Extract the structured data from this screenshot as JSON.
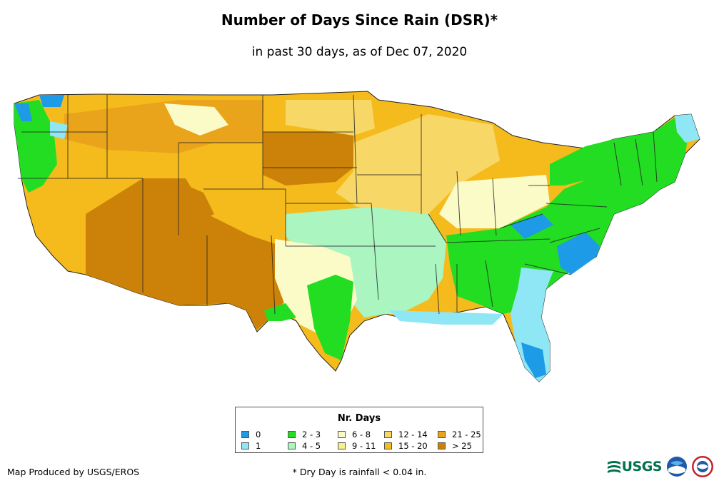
{
  "title": "Number of Days Since Rain (DSR)*",
  "subtitle": "in past 30 days, as of Dec 07, 2020",
  "legend": {
    "title": "Nr. Days",
    "items": [
      {
        "label": "0",
        "color": "#1e9be6"
      },
      {
        "label": "1",
        "color": "#8fe6f5"
      },
      {
        "label": "2 - 3",
        "color": "#22dd22"
      },
      {
        "label": "4 - 5",
        "color": "#aaf5c0"
      },
      {
        "label": "6 - 8",
        "color": "#fbfbc8"
      },
      {
        "label": "9 - 11",
        "color": "#f8f08a"
      },
      {
        "label": "12 - 14",
        "color": "#f7d766"
      },
      {
        "label": "15 - 20",
        "color": "#f5bb1c"
      },
      {
        "label": "21 - 25",
        "color": "#eaa41c"
      },
      {
        "label": "> 25",
        "color": "#cc8208"
      }
    ]
  },
  "credit": "Map Produced by USGS/EROS",
  "footnote": "* Dry Day is rainfall < 0.04 in.",
  "logos": {
    "usgs": "USGS",
    "usgs_icon": "usgs-logo",
    "noaa_icon": "noaa-logo",
    "nws_icon": "nws-logo"
  }
}
